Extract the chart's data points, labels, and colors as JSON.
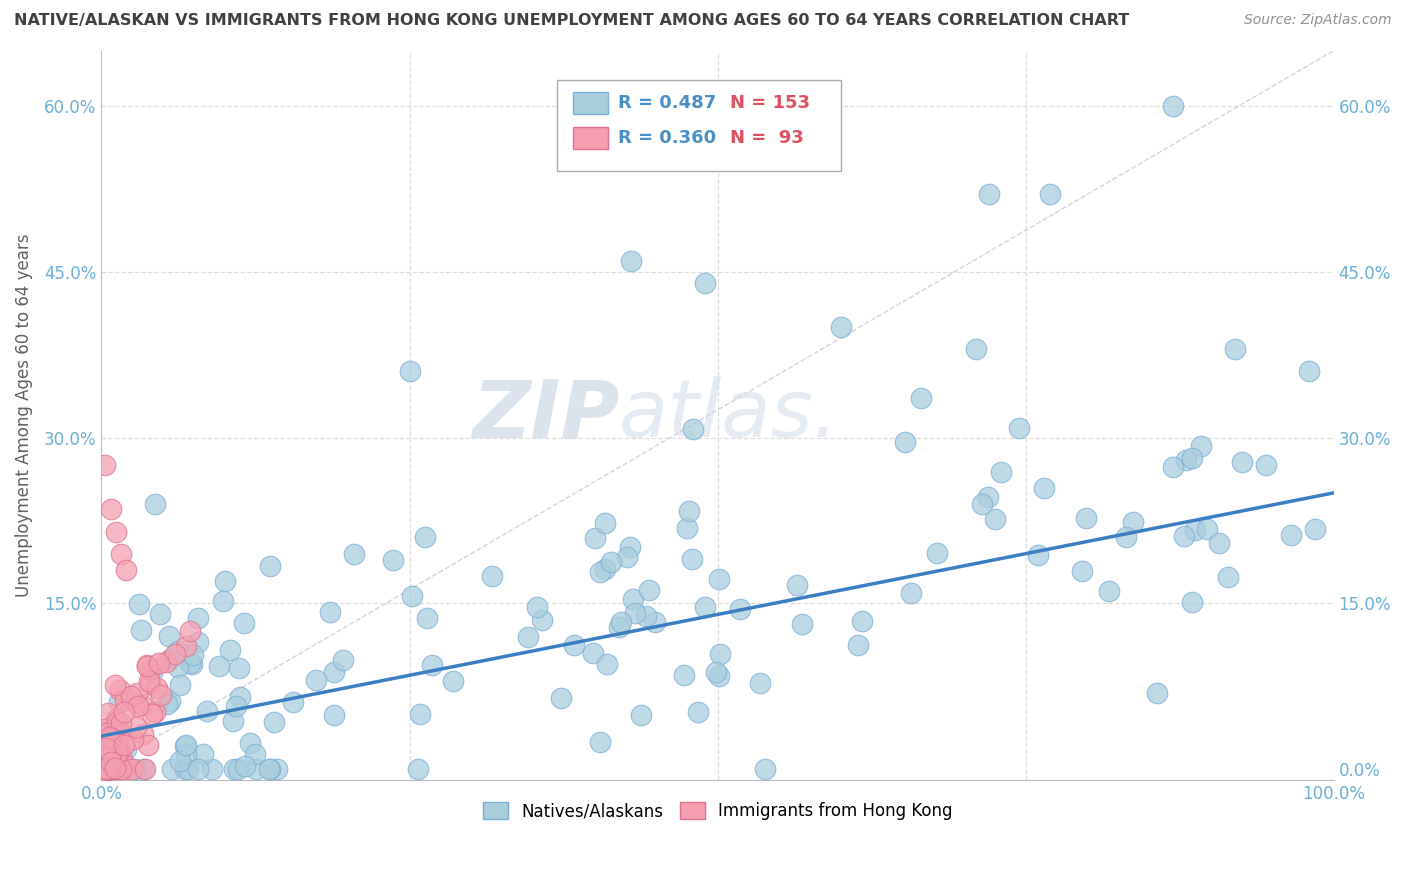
{
  "title": "NATIVE/ALASKAN VS IMMIGRANTS FROM HONG KONG UNEMPLOYMENT AMONG AGES 60 TO 64 YEARS CORRELATION CHART",
  "source": "Source: ZipAtlas.com",
  "ylabel_label": "Unemployment Among Ages 60 to 64 years",
  "xlim": [
    0,
    1.0
  ],
  "ylim": [
    -0.01,
    0.65
  ],
  "watermark_zip": "ZIP",
  "watermark_atlas": "atlas.",
  "legend_blue_r": "R = 0.487",
  "legend_blue_n": "N = 153",
  "legend_pink_r": "R = 0.360",
  "legend_pink_n": "N =  93",
  "blue_color": "#A8CEDE",
  "pink_color": "#F4A0B0",
  "blue_edge": "#7BAED6",
  "pink_edge": "#E07090",
  "trend_color": "#3A7FC4",
  "ref_line_color": "#C8C8D8",
  "background_color": "#FFFFFF",
  "grid_color": "#DDDDDD",
  "title_color": "#404040",
  "axis_label_color": "#606060",
  "tick_color": "#6BAED6",
  "legend_r_color": "#4A90C4",
  "legend_n_color": "#E05060",
  "ytick_vals": [
    0.0,
    0.15,
    0.3,
    0.45,
    0.6
  ],
  "ytick_labels": [
    "0.0%",
    "15.0%",
    "30.0%",
    "45.0%",
    "60.0%"
  ],
  "xtick_edge_labels": [
    "0.0%",
    "100.0%"
  ]
}
